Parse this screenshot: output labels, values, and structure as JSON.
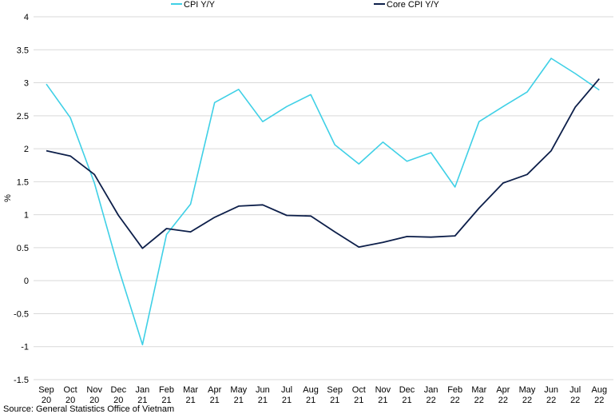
{
  "chart_data": {
    "type": "line",
    "categories": [
      [
        "Sep",
        "20"
      ],
      [
        "Oct",
        "20"
      ],
      [
        "Nov",
        "20"
      ],
      [
        "Dec",
        "20"
      ],
      [
        "Jan",
        "21"
      ],
      [
        "Feb",
        "21"
      ],
      [
        "Mar",
        "21"
      ],
      [
        "Apr",
        "21"
      ],
      [
        "May",
        "21"
      ],
      [
        "Jun",
        "21"
      ],
      [
        "Jul",
        "21"
      ],
      [
        "Aug",
        "21"
      ],
      [
        "Sep",
        "21"
      ],
      [
        "Oct",
        "21"
      ],
      [
        "Nov",
        "21"
      ],
      [
        "Dec",
        "21"
      ],
      [
        "Jan",
        "22"
      ],
      [
        "Feb",
        "22"
      ],
      [
        "Mar",
        "22"
      ],
      [
        "Apr",
        "22"
      ],
      [
        "May",
        "22"
      ],
      [
        "Jun",
        "22"
      ],
      [
        "Jul",
        "22"
      ],
      [
        "Aug",
        "22"
      ]
    ],
    "series": [
      {
        "name": "CPI Y/Y",
        "color": "#3fd0e6",
        "values": [
          2.98,
          2.47,
          1.48,
          0.19,
          -0.97,
          0.7,
          1.16,
          2.7,
          2.9,
          2.41,
          2.64,
          2.82,
          2.06,
          1.77,
          2.1,
          1.81,
          1.94,
          1.42,
          2.41,
          2.64,
          2.86,
          3.37,
          3.14,
          2.89
        ]
      },
      {
        "name": "Core CPI Y/Y",
        "color": "#0d1f4a",
        "values": [
          1.97,
          1.89,
          1.61,
          0.99,
          0.49,
          0.79,
          0.74,
          0.96,
          1.13,
          1.15,
          0.99,
          0.98,
          0.74,
          0.51,
          0.58,
          0.67,
          0.66,
          0.68,
          1.1,
          1.48,
          1.61,
          1.97,
          2.63,
          3.06
        ]
      }
    ],
    "ylabel": "%",
    "ylim": [
      -1.5,
      4
    ],
    "yticks": [
      4,
      3.5,
      3,
      2.5,
      2,
      1.5,
      1,
      0.5,
      0,
      -0.5,
      -1,
      -1.5
    ],
    "ytick_labels": [
      "4",
      "3.5",
      "3",
      "2.5",
      "2",
      "1.5",
      "1",
      "0.5",
      "0",
      "-0.5",
      "-1",
      "-1.5"
    ],
    "grid": true,
    "legend_position": "top"
  },
  "source": "Source: General Statistics Office of Vietnam"
}
